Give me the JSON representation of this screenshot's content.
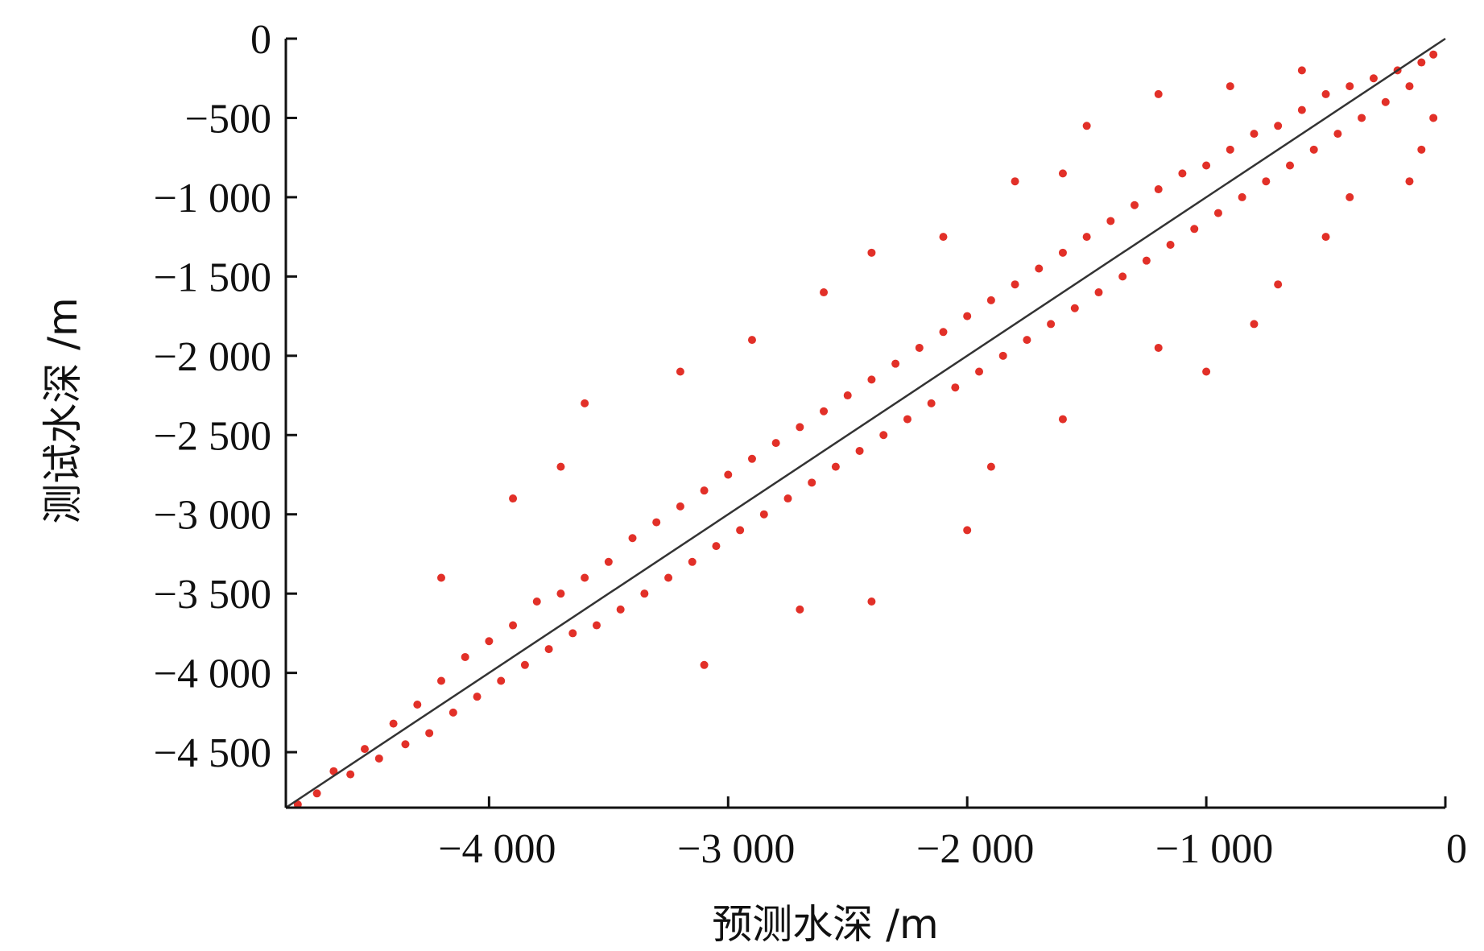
{
  "chart_data": {
    "type": "scatter",
    "title": "",
    "xlabel": "预测水深 /m",
    "ylabel": "测试水深 /m",
    "xlim": [
      -4850,
      0
    ],
    "ylim": [
      -4850,
      0
    ],
    "x_ticks": [
      -4000,
      -3000,
      -2000,
      -1000,
      0
    ],
    "x_tick_labels": [
      "−4 000",
      "−3 000",
      "−2 000",
      "−1 000",
      "0"
    ],
    "y_ticks": [
      0,
      -500,
      -1000,
      -1500,
      -2000,
      -2500,
      -3000,
      -3500,
      -4000,
      -4500
    ],
    "y_tick_labels": [
      "0",
      "−500",
      "−1 000",
      "−1 500",
      "−2 000",
      "−2 500",
      "−3 000",
      "−3 500",
      "−4 000",
      "−4 500"
    ],
    "grid": false,
    "legend": "none",
    "point_color": "#e23028",
    "reference_line": {
      "from": [
        -4850,
        -4850
      ],
      "to": [
        0,
        0
      ],
      "color": "#333333"
    },
    "series": [
      {
        "points": [
          [
            -4800,
            -4830
          ],
          [
            -4720,
            -4760
          ],
          [
            -4650,
            -4620
          ],
          [
            -4580,
            -4640
          ],
          [
            -4520,
            -4480
          ],
          [
            -4460,
            -4540
          ],
          [
            -4400,
            -4320
          ],
          [
            -4350,
            -4450
          ],
          [
            -4300,
            -4200
          ],
          [
            -4250,
            -4380
          ],
          [
            -4200,
            -4050
          ],
          [
            -4150,
            -4250
          ],
          [
            -4100,
            -3900
          ],
          [
            -4050,
            -4150
          ],
          [
            -4000,
            -3800
          ],
          [
            -3950,
            -4050
          ],
          [
            -3900,
            -3700
          ],
          [
            -3850,
            -3950
          ],
          [
            -3800,
            -3550
          ],
          [
            -3750,
            -3850
          ],
          [
            -3700,
            -3500
          ],
          [
            -3650,
            -3750
          ],
          [
            -3600,
            -3400
          ],
          [
            -3550,
            -3700
          ],
          [
            -3500,
            -3300
          ],
          [
            -3450,
            -3600
          ],
          [
            -3400,
            -3150
          ],
          [
            -3350,
            -3500
          ],
          [
            -3300,
            -3050
          ],
          [
            -3250,
            -3400
          ],
          [
            -3200,
            -2950
          ],
          [
            -3150,
            -3300
          ],
          [
            -3100,
            -2850
          ],
          [
            -3050,
            -3200
          ],
          [
            -3000,
            -2750
          ],
          [
            -2950,
            -3100
          ],
          [
            -2900,
            -2650
          ],
          [
            -2850,
            -3000
          ],
          [
            -2800,
            -2550
          ],
          [
            -2750,
            -2900
          ],
          [
            -2700,
            -2450
          ],
          [
            -2650,
            -2800
          ],
          [
            -2600,
            -2350
          ],
          [
            -2550,
            -2700
          ],
          [
            -2500,
            -2250
          ],
          [
            -2450,
            -2600
          ],
          [
            -2400,
            -2150
          ],
          [
            -2350,
            -2500
          ],
          [
            -2300,
            -2050
          ],
          [
            -2250,
            -2400
          ],
          [
            -2200,
            -1950
          ],
          [
            -2150,
            -2300
          ],
          [
            -2100,
            -1850
          ],
          [
            -2050,
            -2200
          ],
          [
            -2000,
            -1750
          ],
          [
            -1950,
            -2100
          ],
          [
            -1900,
            -1650
          ],
          [
            -1850,
            -2000
          ],
          [
            -1800,
            -1550
          ],
          [
            -1750,
            -1900
          ],
          [
            -1700,
            -1450
          ],
          [
            -1650,
            -1800
          ],
          [
            -1600,
            -1350
          ],
          [
            -1550,
            -1700
          ],
          [
            -1500,
            -1250
          ],
          [
            -1450,
            -1600
          ],
          [
            -1400,
            -1150
          ],
          [
            -1350,
            -1500
          ],
          [
            -1300,
            -1050
          ],
          [
            -1250,
            -1400
          ],
          [
            -1200,
            -950
          ],
          [
            -1150,
            -1300
          ],
          [
            -1100,
            -850
          ],
          [
            -1050,
            -1200
          ],
          [
            -1000,
            -800
          ],
          [
            -950,
            -1100
          ],
          [
            -900,
            -700
          ],
          [
            -850,
            -1000
          ],
          [
            -800,
            -600
          ],
          [
            -750,
            -900
          ],
          [
            -700,
            -550
          ],
          [
            -650,
            -800
          ],
          [
            -600,
            -450
          ],
          [
            -550,
            -700
          ],
          [
            -500,
            -350
          ],
          [
            -450,
            -600
          ],
          [
            -400,
            -300
          ],
          [
            -350,
            -500
          ],
          [
            -300,
            -250
          ],
          [
            -250,
            -400
          ],
          [
            -200,
            -200
          ],
          [
            -150,
            -300
          ],
          [
            -100,
            -150
          ],
          [
            -50,
            -100
          ],
          [
            -4200,
            -3400
          ],
          [
            -3900,
            -2900
          ],
          [
            -3700,
            -2700
          ],
          [
            -3600,
            -2300
          ],
          [
            -3200,
            -2100
          ],
          [
            -2900,
            -1900
          ],
          [
            -2600,
            -1600
          ],
          [
            -2400,
            -1350
          ],
          [
            -2100,
            -1250
          ],
          [
            -1800,
            -900
          ],
          [
            -1600,
            -850
          ],
          [
            -1500,
            -550
          ],
          [
            -1200,
            -350
          ],
          [
            -900,
            -300
          ],
          [
            -600,
            -200
          ],
          [
            -3100,
            -3950
          ],
          [
            -2700,
            -3600
          ],
          [
            -2400,
            -3550
          ],
          [
            -2000,
            -3100
          ],
          [
            -1900,
            -2700
          ],
          [
            -1600,
            -2400
          ],
          [
            -1000,
            -2100
          ],
          [
            -1200,
            -1950
          ],
          [
            -800,
            -1800
          ],
          [
            -700,
            -1550
          ],
          [
            -500,
            -1250
          ],
          [
            -400,
            -1000
          ],
          [
            -100,
            -700
          ],
          [
            -150,
            -900
          ],
          [
            -50,
            -500
          ]
        ]
      }
    ]
  }
}
